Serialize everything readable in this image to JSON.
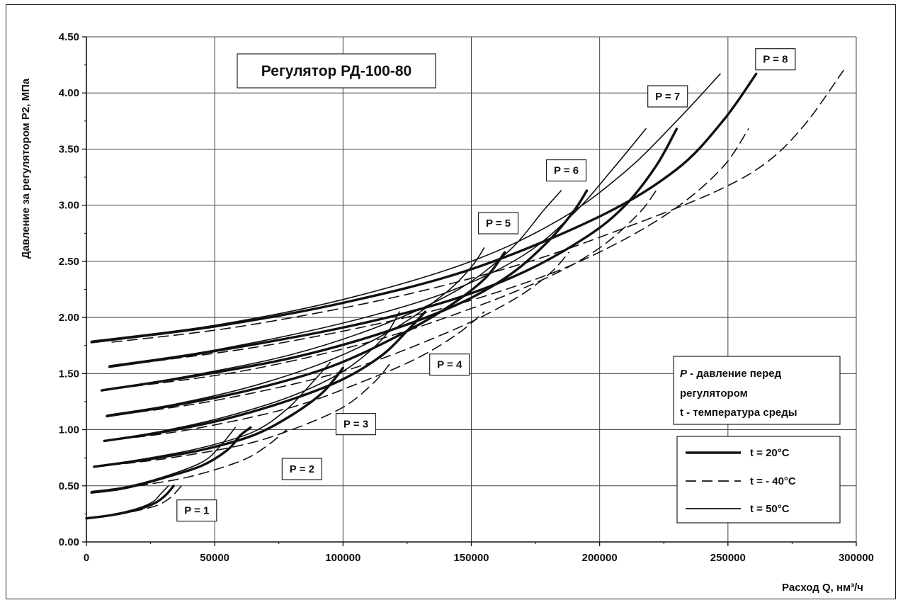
{
  "chart_data": {
    "type": "line",
    "title": "Регулятор РД-100-80",
    "xlabel": "Расход Q, нм³/ч",
    "ylabel": "Давление за регулятором P2, МПа",
    "xlim": [
      0,
      300000
    ],
    "ylim": [
      0,
      4.5
    ],
    "x_ticks": [
      "0",
      "50000",
      "100000",
      "150000",
      "200000",
      "250000",
      "300000"
    ],
    "y_ticks": [
      "0.00",
      "0.50",
      "1.00",
      "1.50",
      "2.00",
      "2.50",
      "3.00",
      "3.50",
      "4.00",
      "4.50"
    ],
    "grid": true,
    "note": {
      "line1_symbol": "P",
      "line1_text": " - давление перед",
      "line2": "регулятором",
      "line3": "t - температура среды"
    },
    "legend": [
      {
        "label": "t = 20°C",
        "style": "thick"
      },
      {
        "label": "t = - 40°C",
        "style": "dashed"
      },
      {
        "label": "t = 50°C",
        "style": "thin"
      }
    ],
    "pressure_labels": [
      {
        "text": "P = 1",
        "x": 43000,
        "y": 0.28
      },
      {
        "text": "P = 2",
        "x": 84000,
        "y": 0.65
      },
      {
        "text": "P = 3",
        "x": 105000,
        "y": 1.05
      },
      {
        "text": "P = 4",
        "x": 141500,
        "y": 1.58
      },
      {
        "text": "P = 5",
        "x": 160500,
        "y": 2.84
      },
      {
        "text": "P = 6",
        "x": 187000,
        "y": 3.31
      },
      {
        "text": "P = 7",
        "x": 226500,
        "y": 3.97
      },
      {
        "text": "P = 8",
        "x": 268500,
        "y": 4.3
      }
    ],
    "series": [
      {
        "group": "P = 1",
        "style": "thick",
        "points": [
          [
            0,
            0.21
          ],
          [
            10000,
            0.24
          ],
          [
            20000,
            0.29
          ],
          [
            27000,
            0.35
          ],
          [
            31000,
            0.42
          ],
          [
            34000,
            0.5
          ]
        ]
      },
      {
        "group": "P = 1",
        "style": "dashed",
        "points": [
          [
            0,
            0.21
          ],
          [
            10000,
            0.235
          ],
          [
            20000,
            0.28
          ],
          [
            28000,
            0.33
          ],
          [
            33000,
            0.4
          ],
          [
            37000,
            0.5
          ]
        ]
      },
      {
        "group": "P = 1",
        "style": "thin",
        "points": [
          [
            0,
            0.21
          ],
          [
            10000,
            0.245
          ],
          [
            20000,
            0.3
          ],
          [
            26000,
            0.36
          ],
          [
            29000,
            0.43
          ],
          [
            32000,
            0.5
          ]
        ]
      },
      {
        "group": "P = 2",
        "style": "thick",
        "points": [
          [
            2000,
            0.44
          ],
          [
            15000,
            0.48
          ],
          [
            30000,
            0.57
          ],
          [
            45000,
            0.68
          ],
          [
            55000,
            0.82
          ],
          [
            60000,
            0.95
          ],
          [
            64000,
            1.02
          ]
        ]
      },
      {
        "group": "P = 2",
        "style": "dashed",
        "points": [
          [
            2000,
            0.44
          ],
          [
            20000,
            0.5
          ],
          [
            40000,
            0.58
          ],
          [
            60000,
            0.72
          ],
          [
            70000,
            0.85
          ],
          [
            78000,
            1.0
          ]
        ]
      },
      {
        "group": "P = 2",
        "style": "thin",
        "points": [
          [
            2000,
            0.45
          ],
          [
            15000,
            0.49
          ],
          [
            30000,
            0.58
          ],
          [
            45000,
            0.71
          ],
          [
            52000,
            0.85
          ],
          [
            58000,
            1.02
          ]
        ]
      },
      {
        "group": "P = 3",
        "style": "thick",
        "points": [
          [
            3000,
            0.67
          ],
          [
            25000,
            0.74
          ],
          [
            45000,
            0.82
          ],
          [
            65000,
            0.95
          ],
          [
            80000,
            1.13
          ],
          [
            92000,
            1.33
          ],
          [
            100000,
            1.55
          ]
        ]
      },
      {
        "group": "P = 3",
        "style": "dashed",
        "points": [
          [
            3000,
            0.67
          ],
          [
            30000,
            0.74
          ],
          [
            60000,
            0.86
          ],
          [
            80000,
            1.0
          ],
          [
            100000,
            1.2
          ],
          [
            112000,
            1.42
          ],
          [
            118000,
            1.58
          ]
        ]
      },
      {
        "group": "P = 3",
        "style": "thin",
        "points": [
          [
            3000,
            0.67
          ],
          [
            25000,
            0.75
          ],
          [
            45000,
            0.84
          ],
          [
            65000,
            0.98
          ],
          [
            78000,
            1.18
          ],
          [
            88000,
            1.42
          ],
          [
            95000,
            1.6
          ]
        ]
      },
      {
        "group": "P = 4",
        "style": "thick",
        "points": [
          [
            7000,
            0.9
          ],
          [
            30000,
            0.98
          ],
          [
            55000,
            1.1
          ],
          [
            80000,
            1.27
          ],
          [
            100000,
            1.45
          ],
          [
            115000,
            1.66
          ],
          [
            125000,
            1.88
          ],
          [
            132000,
            2.05
          ]
        ]
      },
      {
        "group": "P = 4",
        "style": "dashed",
        "points": [
          [
            7000,
            0.9
          ],
          [
            40000,
            1.0
          ],
          [
            80000,
            1.2
          ],
          [
            110000,
            1.45
          ],
          [
            130000,
            1.65
          ],
          [
            145000,
            1.86
          ],
          [
            155000,
            2.05
          ]
        ]
      },
      {
        "group": "P = 4",
        "style": "thin",
        "points": [
          [
            7000,
            0.9
          ],
          [
            30000,
            0.99
          ],
          [
            55000,
            1.12
          ],
          [
            80000,
            1.3
          ],
          [
            100000,
            1.52
          ],
          [
            115000,
            1.8
          ],
          [
            122000,
            2.05
          ]
        ]
      },
      {
        "group": "P = 5",
        "style": "thick",
        "points": [
          [
            8000,
            1.12
          ],
          [
            35000,
            1.22
          ],
          [
            65000,
            1.36
          ],
          [
            95000,
            1.56
          ],
          [
            120000,
            1.82
          ],
          [
            140000,
            2.08
          ],
          [
            155000,
            2.34
          ],
          [
            163000,
            2.58
          ]
        ]
      },
      {
        "group": "P = 5",
        "style": "dashed",
        "points": [
          [
            8000,
            1.12
          ],
          [
            50000,
            1.26
          ],
          [
            100000,
            1.52
          ],
          [
            140000,
            1.86
          ],
          [
            165000,
            2.14
          ],
          [
            180000,
            2.38
          ],
          [
            188000,
            2.58
          ]
        ]
      },
      {
        "group": "P = 5",
        "style": "thin",
        "points": [
          [
            8000,
            1.13
          ],
          [
            35000,
            1.23
          ],
          [
            65000,
            1.39
          ],
          [
            95000,
            1.62
          ],
          [
            120000,
            1.9
          ],
          [
            140000,
            2.22
          ],
          [
            150000,
            2.45
          ],
          [
            155000,
            2.62
          ]
        ]
      },
      {
        "group": "P = 6",
        "style": "thick",
        "points": [
          [
            6000,
            1.35
          ],
          [
            40000,
            1.47
          ],
          [
            80000,
            1.64
          ],
          [
            115000,
            1.86
          ],
          [
            145000,
            2.12
          ],
          [
            165000,
            2.38
          ],
          [
            180000,
            2.68
          ],
          [
            190000,
            2.95
          ],
          [
            195000,
            3.13
          ]
        ]
      },
      {
        "group": "P = 6",
        "style": "dashed",
        "points": [
          [
            6000,
            1.35
          ],
          [
            60000,
            1.52
          ],
          [
            110000,
            1.78
          ],
          [
            150000,
            2.08
          ],
          [
            180000,
            2.36
          ],
          [
            200000,
            2.62
          ],
          [
            215000,
            2.92
          ],
          [
            222000,
            3.13
          ]
        ]
      },
      {
        "group": "P = 6",
        "style": "thin",
        "points": [
          [
            6000,
            1.35
          ],
          [
            40000,
            1.48
          ],
          [
            80000,
            1.67
          ],
          [
            115000,
            1.93
          ],
          [
            145000,
            2.25
          ],
          [
            165000,
            2.6
          ],
          [
            178000,
            2.95
          ],
          [
            185000,
            3.13
          ]
        ]
      },
      {
        "group": "P = 7",
        "style": "thick",
        "points": [
          [
            9000,
            1.56
          ],
          [
            50000,
            1.7
          ],
          [
            100000,
            1.91
          ],
          [
            140000,
            2.14
          ],
          [
            170000,
            2.4
          ],
          [
            195000,
            2.72
          ],
          [
            210000,
            3.0
          ],
          [
            222000,
            3.35
          ],
          [
            230000,
            3.68
          ]
        ]
      },
      {
        "group": "P = 7",
        "style": "dashed",
        "points": [
          [
            9000,
            1.56
          ],
          [
            70000,
            1.75
          ],
          [
            130000,
            2.03
          ],
          [
            175000,
            2.34
          ],
          [
            205000,
            2.64
          ],
          [
            230000,
            2.98
          ],
          [
            248000,
            3.34
          ],
          [
            258000,
            3.68
          ]
        ]
      },
      {
        "group": "P = 7",
        "style": "thin",
        "points": [
          [
            9000,
            1.57
          ],
          [
            50000,
            1.71
          ],
          [
            100000,
            1.95
          ],
          [
            140000,
            2.22
          ],
          [
            170000,
            2.55
          ],
          [
            190000,
            2.93
          ],
          [
            205000,
            3.32
          ],
          [
            218000,
            3.68
          ]
        ]
      },
      {
        "group": "P = 8",
        "style": "thick",
        "points": [
          [
            2000,
            1.78
          ],
          [
            50000,
            1.92
          ],
          [
            100000,
            2.13
          ],
          [
            150000,
            2.43
          ],
          [
            200000,
            2.9
          ],
          [
            230000,
            3.32
          ],
          [
            248000,
            3.75
          ],
          [
            261000,
            4.17
          ]
        ]
      },
      {
        "group": "P = 8",
        "style": "dashed",
        "points": [
          [
            10000,
            1.78
          ],
          [
            60000,
            1.92
          ],
          [
            120000,
            2.18
          ],
          [
            170000,
            2.48
          ],
          [
            210000,
            2.8
          ],
          [
            245000,
            3.12
          ],
          [
            265000,
            3.38
          ],
          [
            280000,
            3.72
          ],
          [
            295000,
            4.2
          ]
        ]
      },
      {
        "group": "P = 8",
        "style": "thin",
        "points": [
          [
            2000,
            1.79
          ],
          [
            50000,
            1.93
          ],
          [
            100000,
            2.16
          ],
          [
            150000,
            2.5
          ],
          [
            185000,
            2.88
          ],
          [
            210000,
            3.3
          ],
          [
            230000,
            3.75
          ],
          [
            247000,
            4.17
          ]
        ]
      }
    ]
  }
}
